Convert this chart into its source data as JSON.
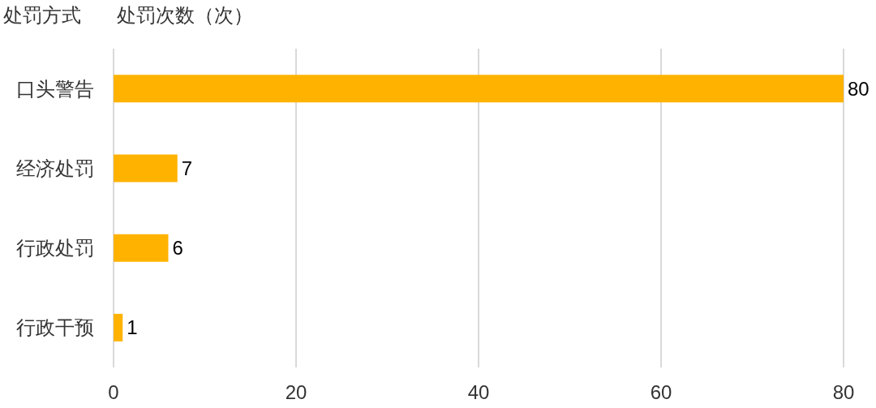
{
  "chart_data": {
    "type": "bar",
    "orientation": "horizontal",
    "xlabel": "处罚次数（次）",
    "ylabel": "处罚方式",
    "categories": [
      "口头警告",
      "经济处罚",
      "行政处罚",
      "行政干预"
    ],
    "values": [
      80,
      7,
      6,
      1
    ],
    "color": "#ffb300",
    "xlim": [
      0,
      80
    ],
    "xticks": [
      0,
      20,
      40,
      60,
      80
    ],
    "grid": "x",
    "data_labels": true
  }
}
